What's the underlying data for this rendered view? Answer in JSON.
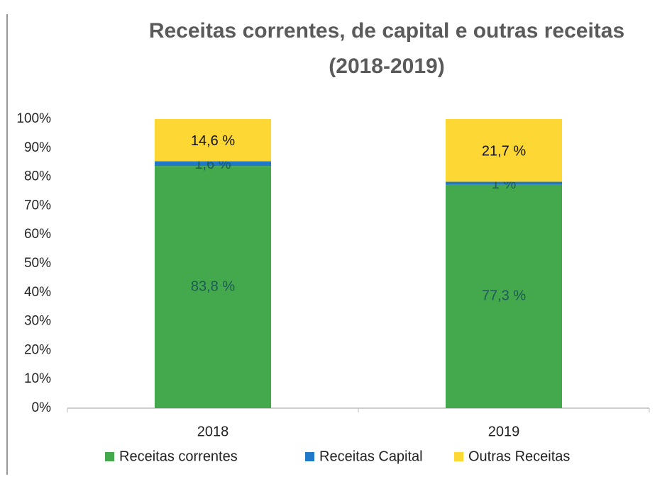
{
  "chart_data": {
    "type": "stacked_bar",
    "title": "Receitas correntes, de capital e outras receitas",
    "subtitle": "(2018-2019)",
    "categories": [
      "2018",
      "2019"
    ],
    "series": [
      {
        "name": "Receitas correntes",
        "color": "#44a84c",
        "values": [
          83.8,
          77.3
        ],
        "value_labels": [
          "83,8 %",
          "77,3 %"
        ]
      },
      {
        "name": "Receitas Capital",
        "color": "#1f78c8",
        "values": [
          1.6,
          1
        ],
        "value_labels": [
          "1,6 %",
          "1 %"
        ]
      },
      {
        "name": "Outras Receitas",
        "color": "#fdd835",
        "values": [
          14.6,
          21.7
        ],
        "value_labels": [
          "14,6 %",
          "21,7 %"
        ]
      }
    ],
    "ylim": [
      0,
      100
    ],
    "yticks": [
      {
        "value": 0,
        "label": "0%"
      },
      {
        "value": 10,
        "label": "10%"
      },
      {
        "value": 20,
        "label": "20%"
      },
      {
        "value": 30,
        "label": "30%"
      },
      {
        "value": 40,
        "label": "40%"
      },
      {
        "value": 50,
        "label": "50%"
      },
      {
        "value": 60,
        "label": "60%"
      },
      {
        "value": 70,
        "label": "70%"
      },
      {
        "value": 80,
        "label": "80%"
      },
      {
        "value": 90,
        "label": "90%"
      },
      {
        "value": 100,
        "label": "100%"
      }
    ],
    "legend": "bottom"
  }
}
